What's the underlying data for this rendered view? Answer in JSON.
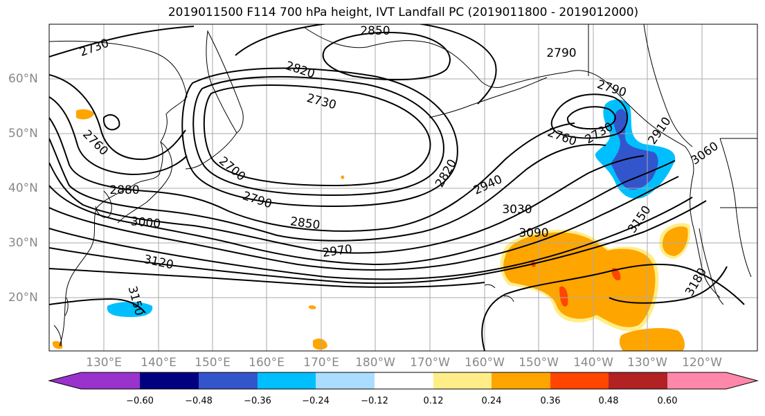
{
  "title": "2019011500 F114 700 hPa height, IVT Landfall PC (2019011800 - 2019012000)",
  "lat_labels": [
    "60°N",
    "50°N",
    "40°N",
    "30°N",
    "20°N"
  ],
  "lon_labels": [
    "130°E",
    "140°E",
    "150°E",
    "160°E",
    "170°E",
    "180°W",
    "170°W",
    "160°W",
    "150°W",
    "140°W",
    "130°W",
    "120°W"
  ],
  "contour_labels": [
    "2730",
    "2850",
    "2790",
    "2820",
    "2730",
    "2790",
    "2760",
    "2760",
    "2730",
    "2700",
    "2880",
    "2940",
    "2820",
    "2790",
    "3030",
    "2850",
    "3000",
    "3090",
    "2970",
    "3120",
    "3150",
    "3060",
    "2910",
    "3150",
    "3180"
  ],
  "colorbar": {
    "colors": [
      "#9933cc",
      "#000080",
      "#3355cc",
      "#00bfff",
      "#aaddff",
      "#ffffff",
      "#ffee88",
      "#ffa500",
      "#ff4500",
      "#b22222",
      "#ff88aa"
    ],
    "tick_labels": [
      "−0.60",
      "−0.48",
      "−0.36",
      "−0.24",
      "−0.12",
      "0.12",
      "0.24",
      "0.36",
      "0.48",
      "0.60"
    ]
  }
}
